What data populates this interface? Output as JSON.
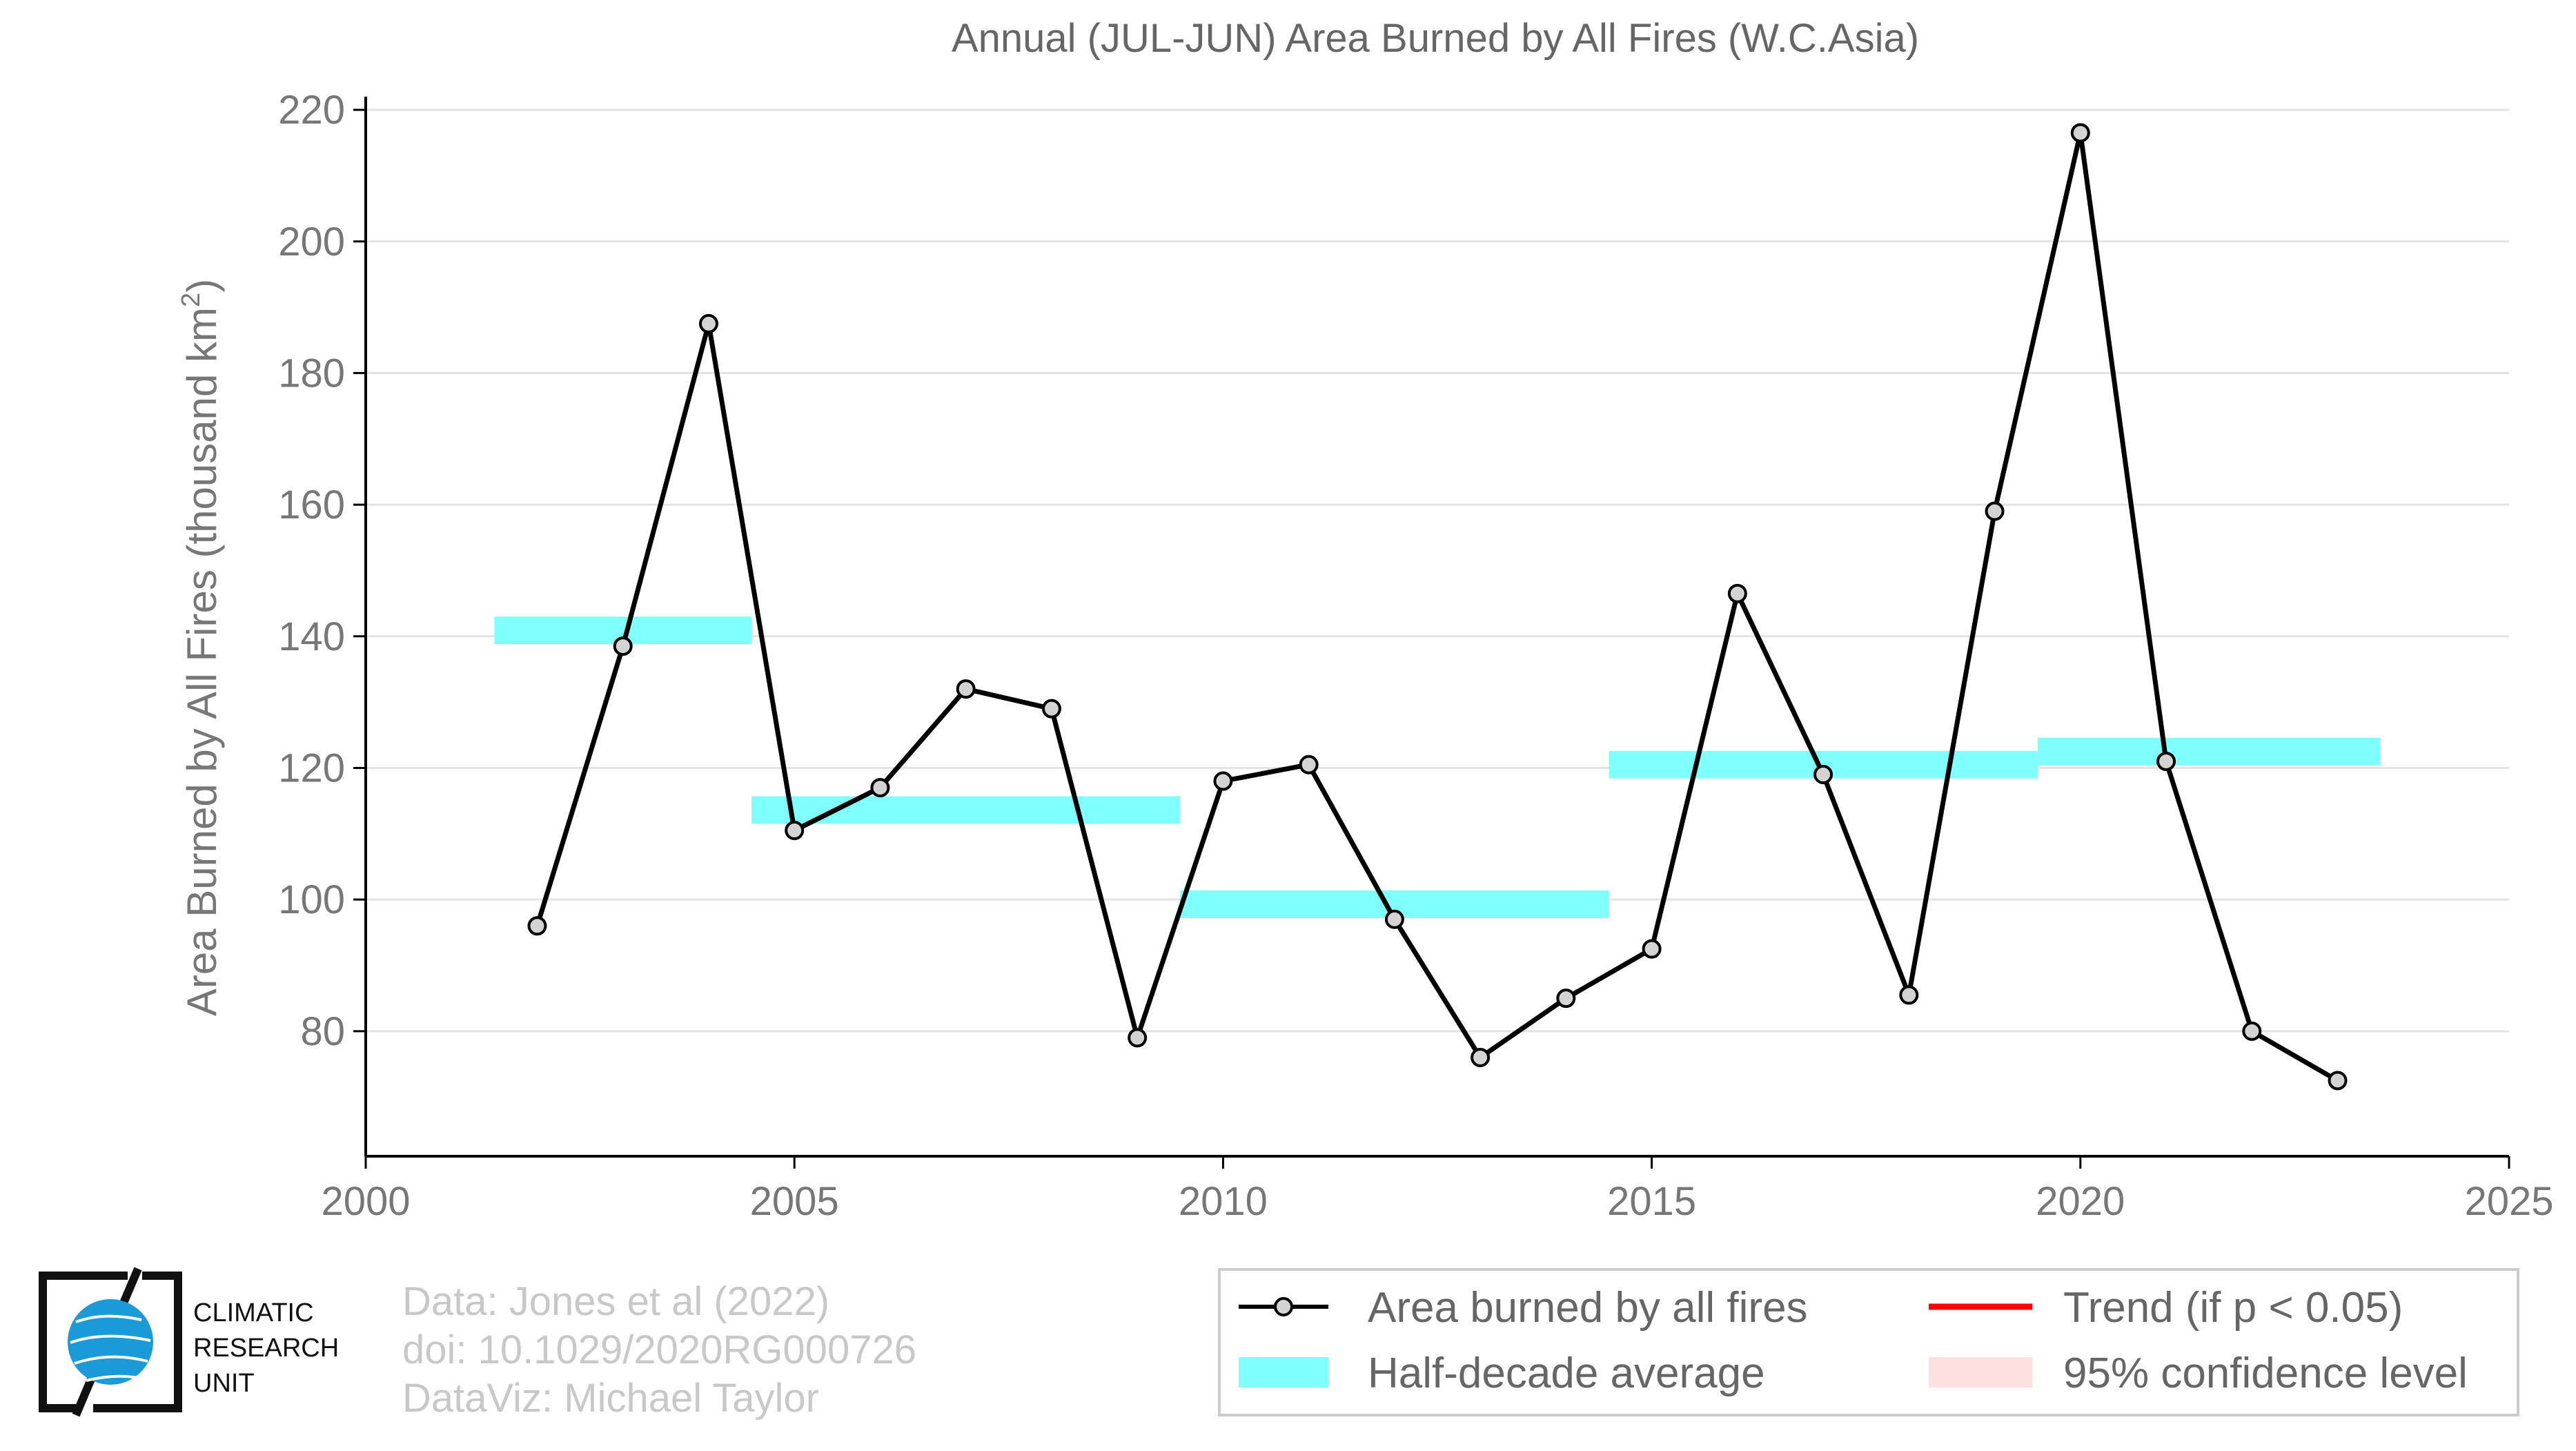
{
  "chart_data": {
    "type": "line",
    "title": "Annual (JUL-JUN) Area Burned by All Fires (W.C.Asia)",
    "ylabel": "Area Burned by All Fires (thousand km",
    "ylabel_sup": "2",
    "ylabel_end": ")",
    "xlim": [
      2000,
      2025
    ],
    "ylim": [
      61,
      222
    ],
    "x_ticks": [
      2000,
      2005,
      2010,
      2015,
      2020,
      2025
    ],
    "y_ticks": [
      80,
      100,
      120,
      140,
      160,
      180,
      200,
      220
    ],
    "grid": true,
    "series": [
      {
        "name": "Area burned by all fires",
        "color": "#000000",
        "marker_fill": "#d3d3d3",
        "x": [
          2002,
          2003,
          2004,
          2005,
          2006,
          2007,
          2008,
          2009,
          2010,
          2011,
          2012,
          2013,
          2014,
          2015,
          2016,
          2017,
          2018,
          2019,
          2020,
          2021,
          2022,
          2023
        ],
        "y": [
          96,
          138.5,
          187.5,
          110.5,
          117,
          132,
          129,
          79,
          118,
          120.5,
          97,
          76,
          85,
          92.5,
          146.5,
          119,
          85.5,
          159,
          216.5,
          121,
          80,
          72.5
        ]
      }
    ],
    "half_decade_averages": {
      "name": "Half-decade average",
      "color": "#80ffff",
      "segments": [
        {
          "x_start": 2001.5,
          "x_end": 2004.5,
          "value": 140.9
        },
        {
          "x_start": 2004.5,
          "x_end": 2009.5,
          "value": 113.6
        },
        {
          "x_start": 2009.5,
          "x_end": 2014.5,
          "value": 99.3
        },
        {
          "x_start": 2014.5,
          "x_end": 2019.5,
          "value": 120.5
        },
        {
          "x_start": 2019.5,
          "x_end": 2023.5,
          "value": 122.5
        }
      ]
    },
    "legend": {
      "placement": "bottom-right",
      "entries": [
        {
          "label": "Area burned by all fires",
          "kind": "line-marker",
          "color": "#000000"
        },
        {
          "label": "Half-decade average",
          "kind": "band",
          "color": "#80ffff"
        },
        {
          "label": "Trend (if p < 0.05)",
          "kind": "line",
          "color": "#ff0000"
        },
        {
          "label": "95% confidence level",
          "kind": "band",
          "color": "#ffe0e0"
        }
      ]
    }
  },
  "credits": {
    "line1": "Data: Jones et al (2022)",
    "line2": "doi: 10.1029/2020RG000726",
    "line3": "DataViz: Michael Taylor"
  },
  "logo": {
    "line1": "CLIMATIC",
    "line2": "RESEARCH",
    "line3": "UNIT"
  }
}
